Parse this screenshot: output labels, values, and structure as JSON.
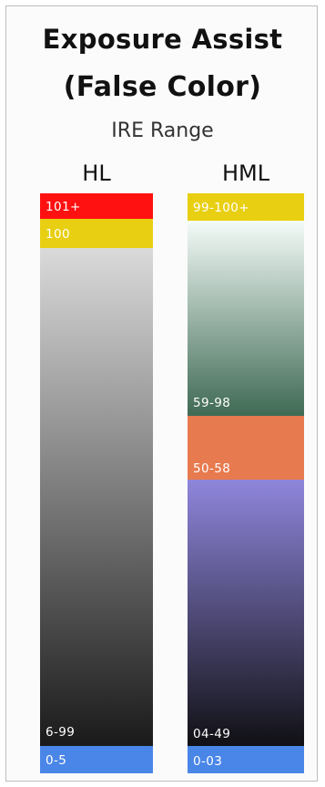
{
  "title_line1": "Exposure Assist",
  "title_line2": "(False Color)",
  "subtitle": "IRE Range",
  "columns": {
    "hl": {
      "name": "HL",
      "segments": [
        {
          "label": "101+",
          "color": "#ff1111"
        },
        {
          "label": "100",
          "color": "#e8cf12"
        },
        {
          "label": "6-99",
          "gradient": [
            "#dadada",
            "#1a1a1a"
          ]
        },
        {
          "label": "0-5",
          "color": "#4a86e8"
        }
      ]
    },
    "hml": {
      "name": "HML",
      "segments": [
        {
          "label": "99-100+",
          "color": "#e8cf12"
        },
        {
          "label": "59-98",
          "gradient": [
            "#f4fbf8",
            "#3f6a54"
          ]
        },
        {
          "label": "50-58",
          "color": "#e77a4e"
        },
        {
          "label": "04-49",
          "gradient": [
            "#8f86dc",
            "#101014"
          ]
        },
        {
          "label": "0-03",
          "color": "#4a86e8"
        }
      ]
    }
  }
}
